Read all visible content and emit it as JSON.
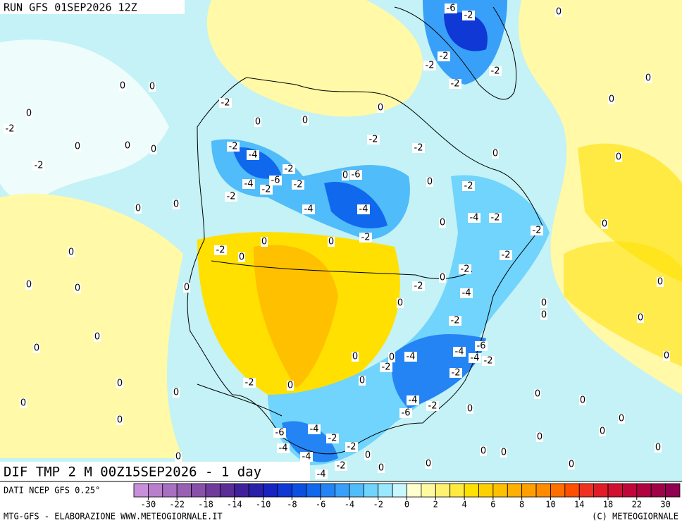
{
  "header": {
    "run": "RUN GFS 01SEP2026 12Z"
  },
  "map_title": "DIF TMP 2 M 00Z15SEP2026 - 1 day",
  "footer": {
    "source": "DATI NCEP GFS 0.25°",
    "credit": "MTG-GFS - ELABORAZIONE WWW.METEOGIORNALE.IT",
    "copyright": "(C) METEOGIORNALE"
  },
  "colorbar": {
    "ticks": [
      -30,
      -22,
      -18,
      -14,
      -10,
      -8,
      -6,
      -4,
      -2,
      0,
      2,
      4,
      6,
      8,
      10,
      14,
      18,
      22,
      30
    ],
    "colors": [
      "#c890d8",
      "#b880cc",
      "#a870c0",
      "#9860b4",
      "#8850a8",
      "#703c9c",
      "#5a2c96",
      "#40209a",
      "#2820a8",
      "#1824c0",
      "#1038d4",
      "#0c50e0",
      "#1068ec",
      "#2484f4",
      "#38a0f8",
      "#50bcfa",
      "#70d4fc",
      "#98e8fe",
      "#c8f8ff",
      "#ffffd0",
      "#fffaa0",
      "#fff270",
      "#ffea40",
      "#ffe000",
      "#ffd000",
      "#ffc000",
      "#ffb000",
      "#ffa000",
      "#ff8c00",
      "#ff7000",
      "#ff5000",
      "#f03020",
      "#e01c28",
      "#d01030",
      "#c00838",
      "#b00440",
      "#a00248",
      "#900050"
    ]
  },
  "contour_labels": [
    "-6",
    "-2",
    "0",
    "-2",
    "-2",
    "-2",
    "-2",
    "0",
    "0",
    "0",
    "0",
    "-2",
    "0",
    "0",
    "-2",
    "0",
    "0",
    "0",
    "0",
    "0",
    "-2",
    "-4",
    "-2",
    "-2",
    "0",
    "0",
    "-2",
    "-2",
    "0",
    "-6",
    "-4",
    "-6",
    "-2",
    "-2",
    "-2",
    "0",
    "-2",
    "0",
    "0",
    "-4",
    "-4",
    "0",
    "-4",
    "-2",
    "0",
    "-2",
    "-2",
    "0",
    "0",
    "-2",
    "0",
    "0",
    "-2",
    "-2",
    "0",
    "0",
    "0",
    "-2",
    "0",
    "-4",
    "0",
    "0",
    "0",
    "0",
    "-2",
    "0",
    "0",
    "0",
    "-6",
    "-4",
    "-4",
    "-2",
    "-4",
    "0",
    "0",
    "-2",
    "0",
    "-2",
    "0",
    "-2",
    "0",
    "0",
    "0",
    "0",
    "0",
    "0",
    "-4",
    "-2",
    "-6",
    "0",
    "0",
    "0",
    "-4",
    "-6",
    "-2",
    "0",
    "0",
    "-4",
    "-2",
    "0",
    "0",
    "0",
    "-4",
    "0",
    "-2",
    "0",
    "0",
    "-4",
    "0",
    "0"
  ]
}
